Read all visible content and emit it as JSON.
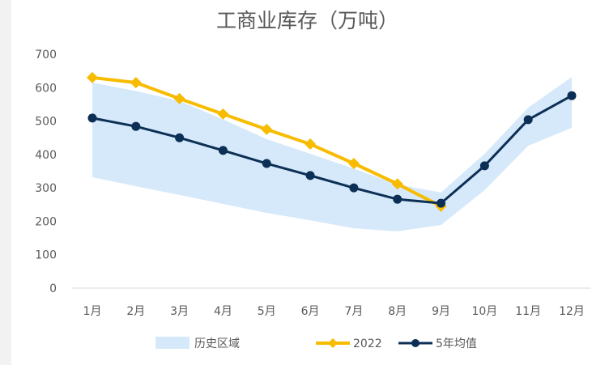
{
  "chart_data": {
    "type": "line",
    "title": "工商业库存（万吨）",
    "categories": [
      "1月",
      "2月",
      "3月",
      "4月",
      "5月",
      "6月",
      "7月",
      "8月",
      "9月",
      "10月",
      "11月",
      "12月"
    ],
    "ylim": [
      0,
      700
    ],
    "yticks": [
      0,
      100,
      200,
      300,
      400,
      500,
      600,
      700
    ],
    "grid": false,
    "legend_position": "bottom",
    "band": {
      "name": "历史区域",
      "color": "#d6e9fa",
      "upper": [
        615,
        590,
        560,
        505,
        446,
        402,
        358,
        310,
        286,
        402,
        540,
        632
      ],
      "lower": [
        332,
        305,
        279,
        252,
        225,
        203,
        179,
        170,
        189,
        293,
        426,
        480
      ]
    },
    "series": [
      {
        "name": "2022",
        "color": "#f7bc00",
        "marker": "diamond",
        "values": [
          630,
          615,
          567,
          521,
          475,
          431,
          373,
          312,
          245,
          null,
          null,
          null
        ]
      },
      {
        "name": "5年均值",
        "color": "#0c2f55",
        "marker": "circle",
        "values": [
          509,
          484,
          450,
          412,
          373,
          337,
          300,
          266,
          254,
          366,
          504,
          576
        ]
      }
    ]
  }
}
